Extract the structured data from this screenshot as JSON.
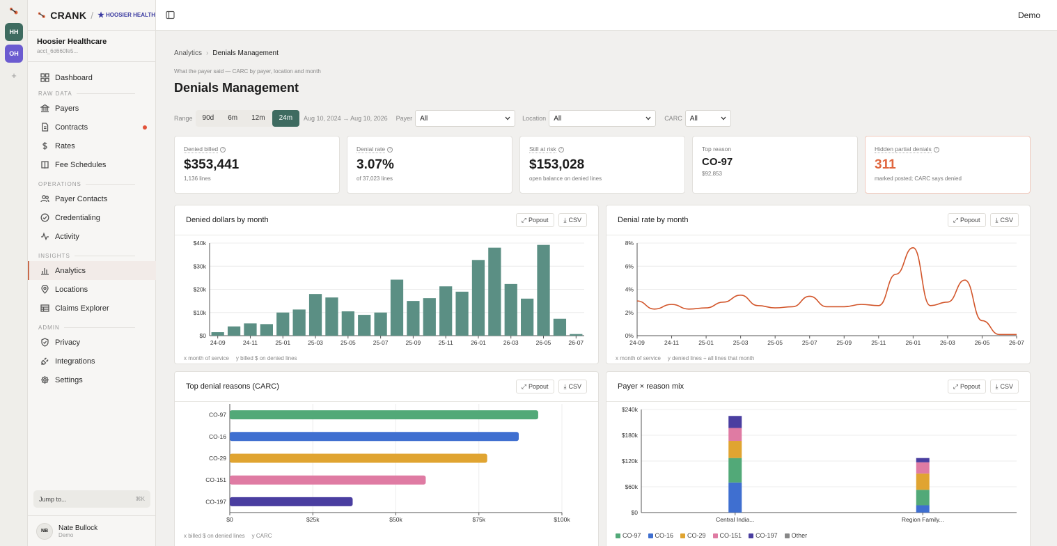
{
  "app": {
    "name": "CRANK",
    "tenant": "HOOSIER HEALTH",
    "demo": "Demo"
  },
  "workspaces": [
    {
      "initials": "HH",
      "color": "#3e6b60"
    },
    {
      "initials": "OH",
      "color": "#6b5bd0"
    }
  ],
  "account": {
    "name": "Hoosier Healthcare",
    "id": "acct_6d660fe5..."
  },
  "nav": {
    "dashboard": "Dashboard",
    "raw_data": {
      "label": "RAW DATA",
      "items": [
        "Payers",
        "Contracts",
        "Rates",
        "Fee Schedules"
      ]
    },
    "operations": {
      "label": "OPERATIONS",
      "items": [
        "Payer Contacts",
        "Credentialing",
        "Activity"
      ]
    },
    "insights": {
      "label": "INSIGHTS",
      "items": [
        "Analytics",
        "Locations",
        "Claims Explorer"
      ]
    },
    "admin": {
      "label": "ADMIN",
      "items": [
        "Privacy",
        "Integrations",
        "Settings"
      ]
    }
  },
  "jump": {
    "label": "Jump to...",
    "shortcut": "⌘K"
  },
  "user": {
    "initials": "NB",
    "name": "Nate Bullock",
    "role": "Demo"
  },
  "breadcrumb": {
    "parent": "Analytics",
    "current": "Denials Management"
  },
  "page": {
    "subtitle": "What the payer said — CARC by payer, location and month",
    "title": "Denials Management"
  },
  "filters": {
    "range_label": "Range",
    "ranges": [
      "90d",
      "6m",
      "12m",
      "24m"
    ],
    "selected_range": "24m",
    "date_span": "Aug 10, 2024 → Aug 10, 2026",
    "payer_label": "Payer",
    "payer_value": "All",
    "location_label": "Location",
    "location_value": "All",
    "carc_label": "CARC",
    "carc_value": "All"
  },
  "kpis": [
    {
      "label": "Denied billed",
      "value": "$353,441",
      "sub": "1,136 lines"
    },
    {
      "label": "Denial rate",
      "value": "3.07%",
      "sub": "of 37,023 lines"
    },
    {
      "label": "Still at risk",
      "value": "$153,028",
      "sub": "open balance on denied lines"
    },
    {
      "label": "Top reason",
      "value": "CO-97",
      "sub": "$92,853"
    },
    {
      "label": "Hidden partial denials",
      "value": "311",
      "sub": "marked posted; CARC says denied"
    }
  ],
  "buttons": {
    "popout": "Popout",
    "csv": "CSV"
  },
  "cards": {
    "denied_dollars": {
      "title": "Denied dollars by month",
      "xnote": "x month of service",
      "ynote": "y billed $ on denied lines"
    },
    "denial_rate": {
      "title": "Denial rate by month",
      "xnote": "x month of service",
      "ynote": "y denied lines ÷ all lines that month"
    },
    "top_reasons": {
      "title": "Top denial reasons (CARC)",
      "xnote": "x billed $ on denied lines",
      "ynote": "y CARC"
    },
    "payer_mix": {
      "title": "Payer × reason mix"
    }
  },
  "colors": {
    "accent": "#3e6b60",
    "bar": "#5b8f84",
    "line": "#d2552a",
    "warn": "#e0673f"
  },
  "chart_data": [
    {
      "type": "bar",
      "title": "Denied dollars by month",
      "categories": [
        "24-09",
        "24-10",
        "24-11",
        "24-12",
        "25-01",
        "25-02",
        "25-03",
        "25-04",
        "25-05",
        "25-06",
        "25-07",
        "25-08",
        "25-09",
        "25-10",
        "25-11",
        "25-12",
        "26-01",
        "26-02",
        "26-03",
        "26-04",
        "26-05",
        "26-06",
        "26-07"
      ],
      "tick_labels": [
        "24-09",
        "24-11",
        "25-01",
        "25-03",
        "25-05",
        "25-07",
        "25-09",
        "25-11",
        "26-01",
        "26-03",
        "26-05",
        "26-07"
      ],
      "values": [
        1500,
        4000,
        5300,
        5000,
        10000,
        11300,
        18000,
        16500,
        10500,
        9000,
        10000,
        24200,
        15000,
        16200,
        21300,
        19000,
        32700,
        38000,
        22300,
        16000,
        39200,
        7300,
        700
      ],
      "yticks": [
        "$0",
        "$10k",
        "$20k",
        "$30k",
        "$40k"
      ],
      "ylim": [
        0,
        40000
      ]
    },
    {
      "type": "line",
      "title": "Denial rate by month",
      "categories": [
        "24-09",
        "24-10",
        "24-11",
        "24-12",
        "25-01",
        "25-02",
        "25-03",
        "25-04",
        "25-05",
        "25-06",
        "25-07",
        "25-08",
        "25-09",
        "25-10",
        "25-11",
        "25-12",
        "26-01",
        "26-02",
        "26-03",
        "26-04",
        "26-05",
        "26-06",
        "26-07"
      ],
      "tick_labels": [
        "24-09",
        "24-11",
        "25-01",
        "25-03",
        "25-05",
        "25-07",
        "25-09",
        "25-11",
        "26-01",
        "26-03",
        "26-05",
        "26-07"
      ],
      "values": [
        3.0,
        2.3,
        2.7,
        2.3,
        2.4,
        2.9,
        3.5,
        2.6,
        2.4,
        2.5,
        3.4,
        2.5,
        2.5,
        2.7,
        2.6,
        5.3,
        7.6,
        2.6,
        2.9,
        4.8,
        1.3,
        0.1,
        0.1
      ],
      "yticks": [
        "0%",
        "2%",
        "4%",
        "6%",
        "8%"
      ],
      "ylim": [
        0,
        8
      ]
    },
    {
      "type": "bar",
      "orientation": "horizontal",
      "title": "Top denial reasons (CARC)",
      "categories": [
        "CO-97",
        "CO-16",
        "CO-29",
        "CO-151",
        "CO-197"
      ],
      "values": [
        92853,
        87000,
        77500,
        59000,
        37000
      ],
      "colors": [
        "#52a978",
        "#3f6fd0",
        "#e0a431",
        "#df7ba3",
        "#4a3ea0"
      ],
      "xticks": [
        "$0",
        "$25k",
        "$50k",
        "$75k",
        "$100k"
      ],
      "xlim": [
        0,
        100000
      ]
    },
    {
      "type": "bar",
      "stacked": true,
      "title": "Payer × reason mix",
      "categories": [
        "Central India...",
        "Region Family..."
      ],
      "series": [
        {
          "name": "CO-16",
          "color": "#3f6fd0",
          "values": [
            70000,
            17000
          ]
        },
        {
          "name": "CO-97",
          "color": "#52a978",
          "values": [
            57000,
            36000
          ]
        },
        {
          "name": "CO-29",
          "color": "#e0a431",
          "values": [
            40000,
            38000
          ]
        },
        {
          "name": "CO-151",
          "color": "#df7ba3",
          "values": [
            30000,
            26000
          ]
        },
        {
          "name": "CO-197",
          "color": "#4a3ea0",
          "values": [
            28000,
            10000
          ]
        }
      ],
      "legend": [
        "CO-97",
        "CO-16",
        "CO-29",
        "CO-151",
        "CO-197",
        "Other"
      ],
      "legend_colors": [
        "#52a978",
        "#3f6fd0",
        "#e0a431",
        "#df7ba3",
        "#4a3ea0",
        "#888888"
      ],
      "yticks": [
        "$0",
        "$60k",
        "$120k",
        "$180k",
        "$240k"
      ],
      "ylim": [
        0,
        240000
      ]
    }
  ]
}
